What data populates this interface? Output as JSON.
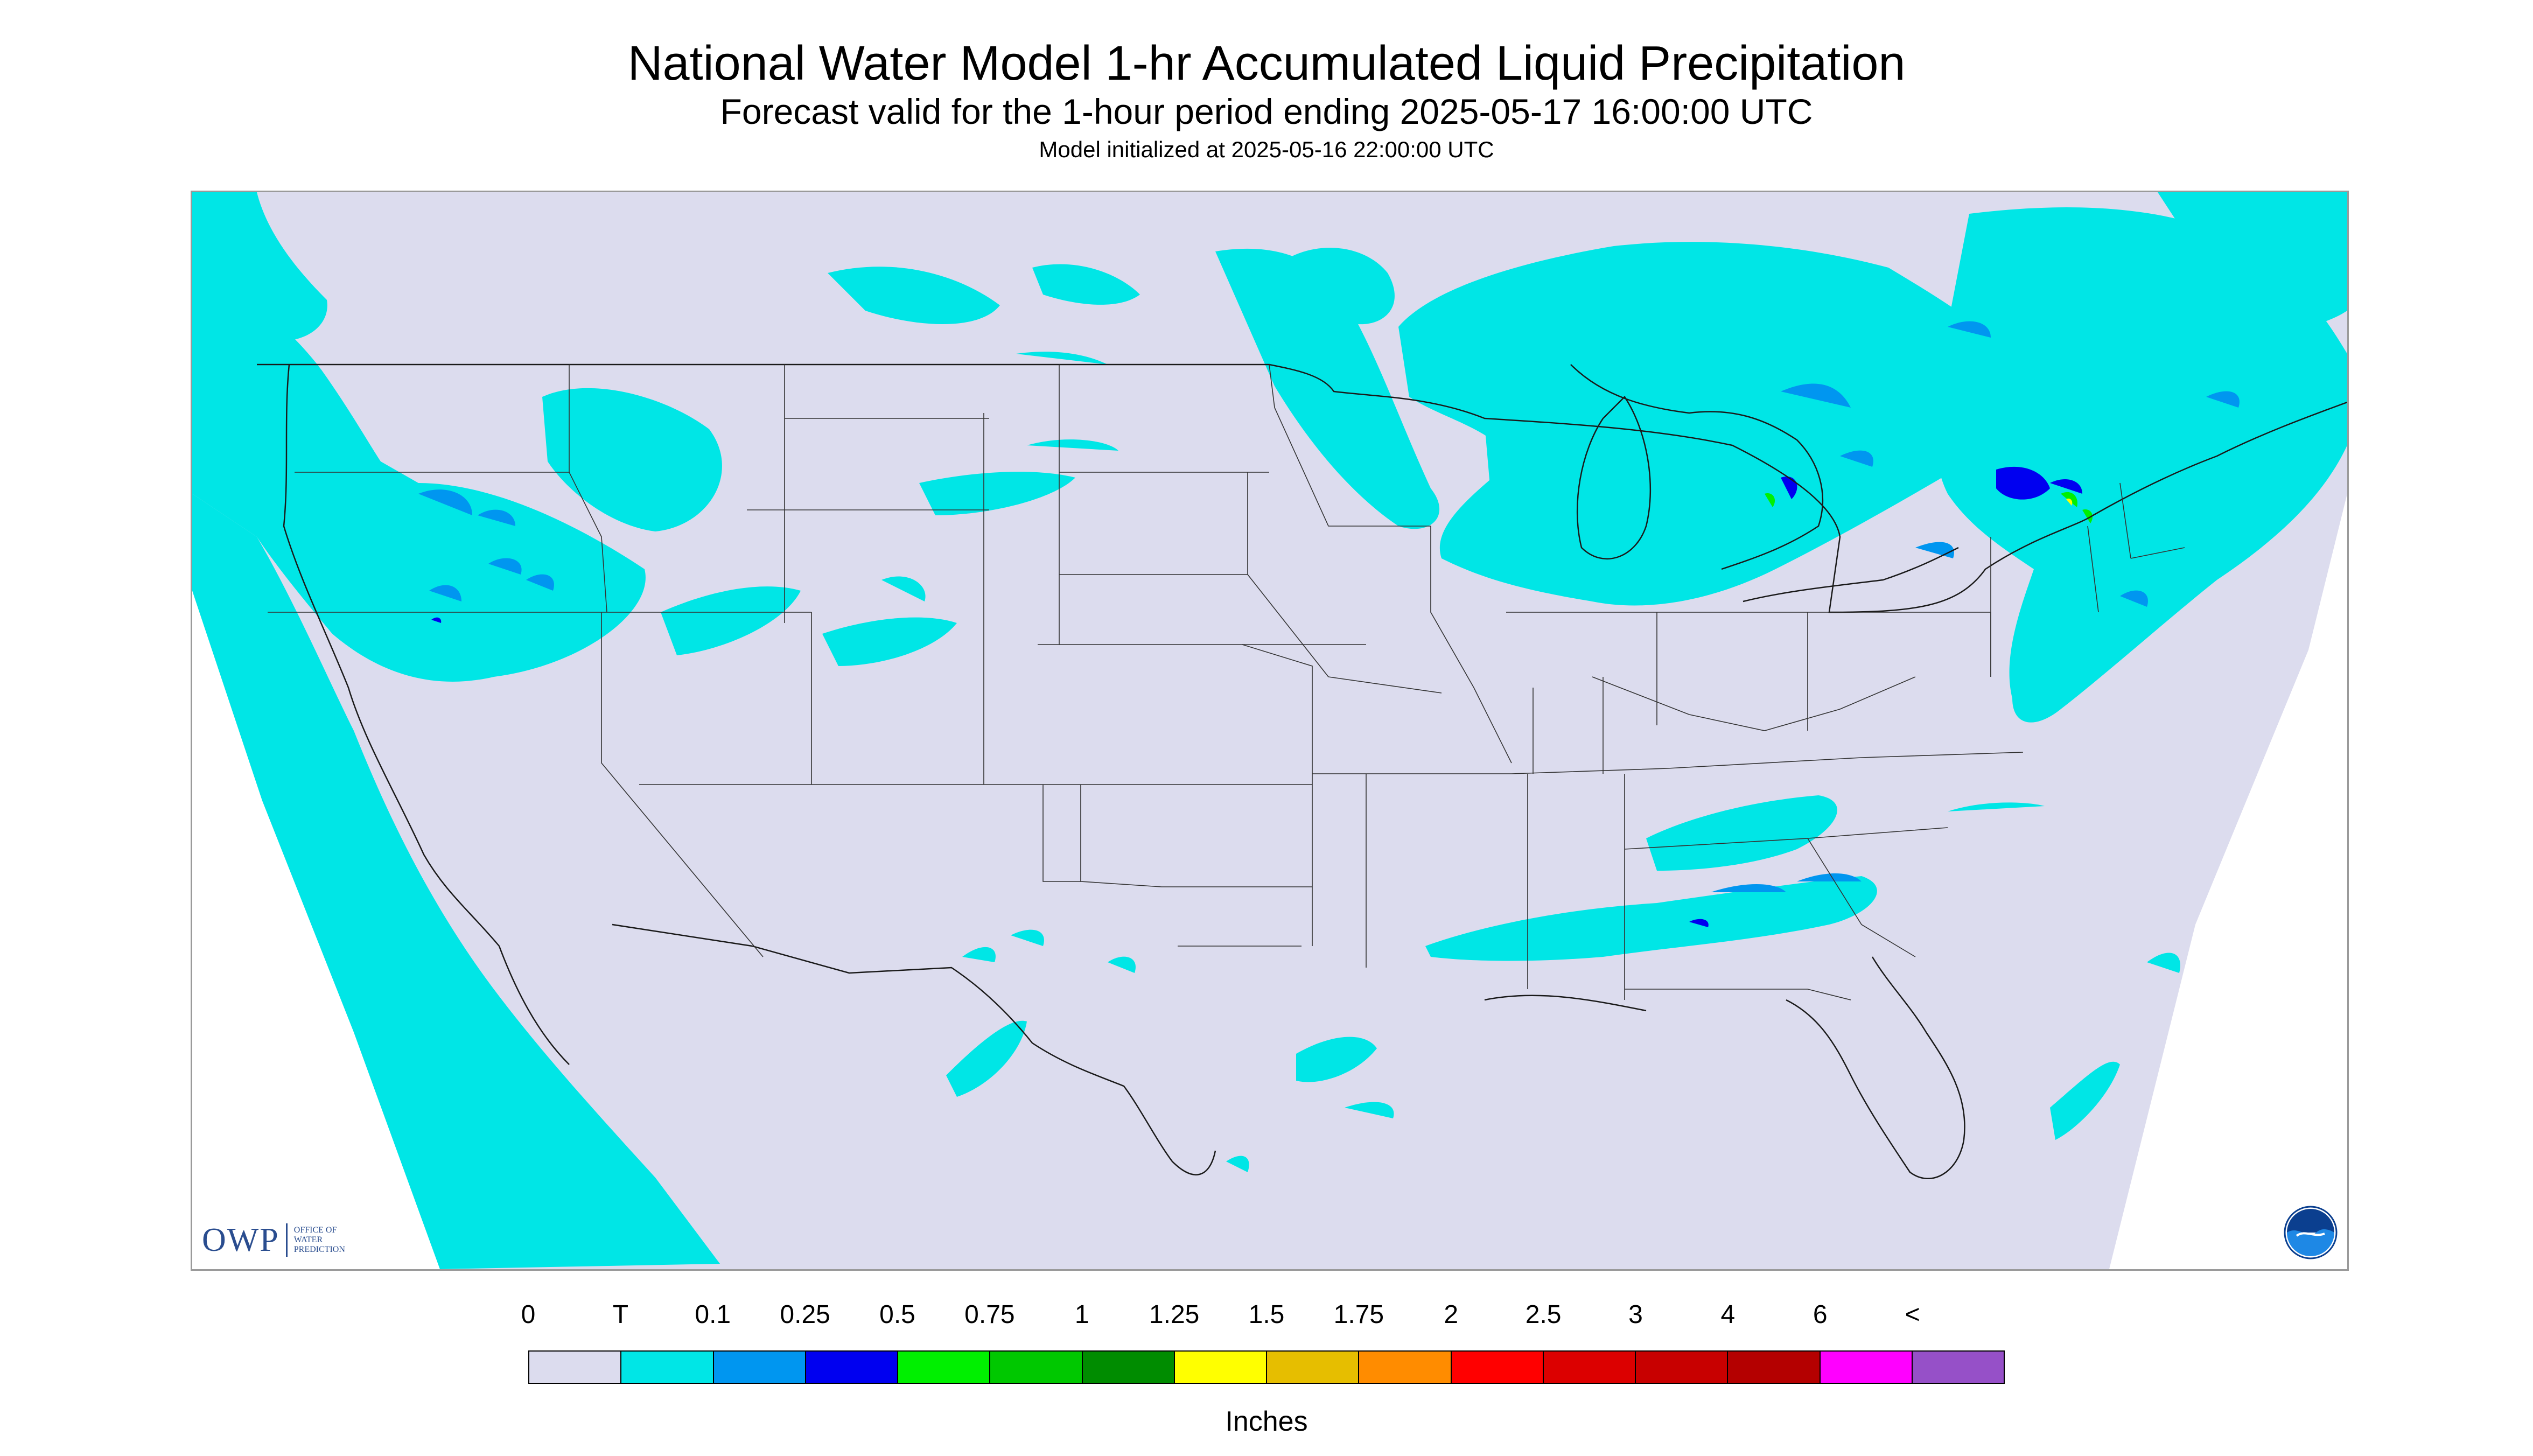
{
  "header": {
    "title": "National Water Model 1-hr Accumulated Liquid Precipitation",
    "subtitle": "Forecast valid for the 1-hour period ending 2025-05-17 16:00:00 UTC",
    "init_line": "Model initialized at 2025-05-16 22:00:00 UTC"
  },
  "map": {
    "background_color": "#dcdcee",
    "outside_domain_color": "#ffffff",
    "boundary_color": "#1a1a1a",
    "precip_colors": {
      "trace": "#00e6e6",
      "tenth": "#0096f0",
      "quarter": "#0000f0",
      "half": "#00f000",
      "yellow": "#ffff00"
    },
    "logos": {
      "owp_text": "OWP",
      "owp_subtext": [
        "Office of",
        "Water",
        "Prediction"
      ],
      "noaa_icon": "noaa-logo-icon"
    }
  },
  "legend": {
    "labels": [
      "0",
      "T",
      "0.1",
      "0.25",
      "0.5",
      "0.75",
      "1",
      "1.25",
      "1.5",
      "1.75",
      "2",
      "2.5",
      "3",
      "4",
      "6",
      "<"
    ],
    "colors": [
      "#dcdcee",
      "#00e6e6",
      "#0096f0",
      "#0000f0",
      "#00f000",
      "#00c800",
      "#008c00",
      "#ffff00",
      "#e6be00",
      "#ff8c00",
      "#ff0000",
      "#dc0000",
      "#c80000",
      "#b40000",
      "#ff00ff",
      "#9650c8"
    ],
    "unit_label": "Inches"
  }
}
